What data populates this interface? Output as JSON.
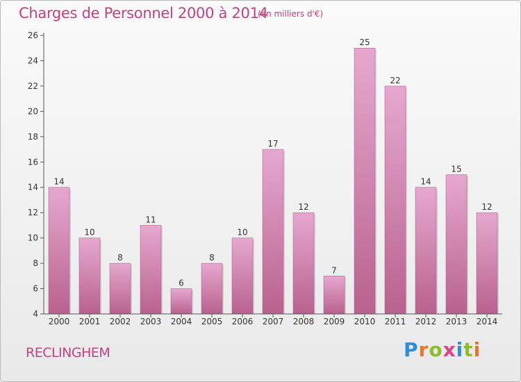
{
  "header": {
    "title": "Charges de Personnel 2000 à 2014",
    "subtitle": "(en milliers d'€)"
  },
  "footer": {
    "commune": "RECLINGHEM",
    "logo_text": "Proxiti"
  },
  "colors": {
    "accent": "#c2417f",
    "bar_top": "#e6a8cf",
    "bar_bottom": "#b8628e"
  },
  "chart_data": {
    "type": "bar",
    "title": "Charges de Personnel 2000 à 2014",
    "subtitle": "(en milliers d'€)",
    "categories": [
      "2000",
      "2001",
      "2002",
      "2003",
      "2004",
      "2005",
      "2006",
      "2007",
      "2008",
      "2009",
      "2010",
      "2011",
      "2012",
      "2013",
      "2014"
    ],
    "values": [
      14,
      10,
      8,
      11,
      6,
      8,
      10,
      17,
      12,
      7,
      25,
      22,
      14,
      15,
      12
    ],
    "ylim": [
      4,
      26
    ],
    "yticks": [
      4,
      6,
      8,
      10,
      12,
      14,
      16,
      18,
      20,
      22,
      24,
      26
    ],
    "grid": false,
    "data_labels": true
  }
}
